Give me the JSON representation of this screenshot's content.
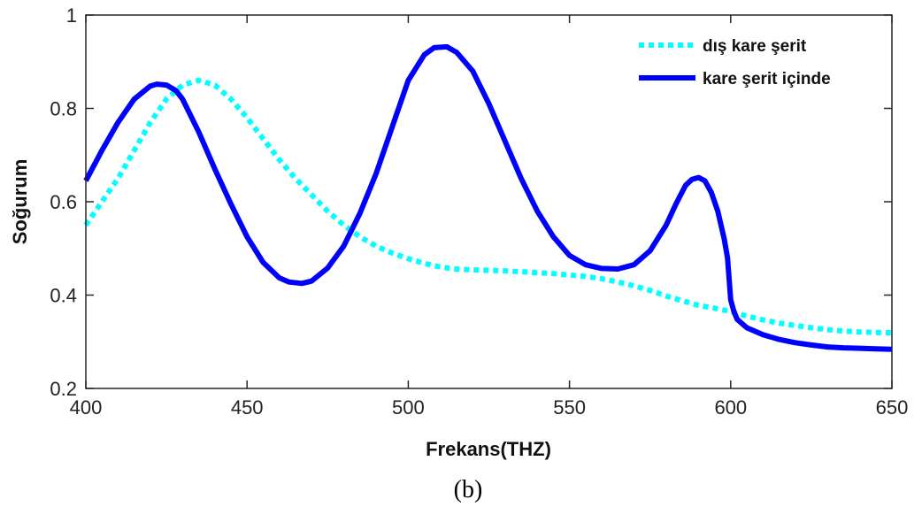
{
  "chart_data": {
    "type": "line",
    "xlabel": "Frekans(THZ)",
    "ylabel": "Soğurum",
    "xlim": [
      400,
      650
    ],
    "ylim": [
      0.2,
      1
    ],
    "x_ticks": [
      400,
      450,
      500,
      550,
      600,
      650
    ],
    "y_ticks": [
      0.2,
      0.4,
      0.6,
      0.8,
      1
    ],
    "x_tick_labels": [
      "400",
      "450",
      "500",
      "550",
      "600",
      "650"
    ],
    "y_tick_labels": [
      "0.2",
      "0.4",
      "0.6",
      "0.8",
      "1"
    ],
    "grid": false,
    "legend_position": "top-right",
    "caption": "(b)",
    "series": [
      {
        "name": "dış kare şerit",
        "color": "#00ffff",
        "style": "dotted",
        "x": [
          400,
          405,
          410,
          415,
          420,
          425,
          430,
          435,
          440,
          445,
          450,
          455,
          460,
          465,
          470,
          475,
          480,
          485,
          490,
          495,
          500,
          505,
          510,
          515,
          520,
          525,
          530,
          535,
          540,
          545,
          550,
          555,
          560,
          565,
          570,
          575,
          580,
          585,
          590,
          595,
          600,
          605,
          610,
          615,
          620,
          625,
          630,
          635,
          640,
          645,
          650
        ],
        "y": [
          0.55,
          0.6,
          0.65,
          0.71,
          0.77,
          0.82,
          0.85,
          0.86,
          0.85,
          0.82,
          0.78,
          0.735,
          0.69,
          0.65,
          0.615,
          0.58,
          0.55,
          0.525,
          0.505,
          0.49,
          0.478,
          0.468,
          0.46,
          0.456,
          0.454,
          0.453,
          0.452,
          0.45,
          0.448,
          0.446,
          0.443,
          0.44,
          0.435,
          0.428,
          0.42,
          0.41,
          0.398,
          0.388,
          0.378,
          0.372,
          0.365,
          0.355,
          0.347,
          0.34,
          0.335,
          0.33,
          0.326,
          0.323,
          0.321,
          0.32,
          0.319
        ]
      },
      {
        "name": "kare şerit içinde",
        "color": "#0000ff",
        "style": "solid",
        "x": [
          400,
          405,
          410,
          415,
          420,
          422,
          425,
          428,
          430,
          435,
          440,
          445,
          450,
          455,
          460,
          463,
          467,
          470,
          475,
          480,
          485,
          490,
          495,
          500,
          505,
          508,
          512,
          515,
          520,
          525,
          530,
          535,
          540,
          545,
          550,
          555,
          560,
          565,
          570,
          575,
          580,
          583,
          586,
          588,
          590,
          592,
          594,
          596,
          598,
          599,
          600,
          601,
          602,
          605,
          610,
          615,
          620,
          625,
          630,
          635,
          640,
          645,
          650
        ],
        "y": [
          0.645,
          0.71,
          0.77,
          0.82,
          0.848,
          0.852,
          0.85,
          0.838,
          0.82,
          0.75,
          0.67,
          0.595,
          0.525,
          0.47,
          0.437,
          0.428,
          0.425,
          0.43,
          0.458,
          0.505,
          0.575,
          0.66,
          0.76,
          0.86,
          0.915,
          0.93,
          0.932,
          0.92,
          0.88,
          0.81,
          0.73,
          0.65,
          0.58,
          0.525,
          0.485,
          0.465,
          0.457,
          0.456,
          0.465,
          0.495,
          0.55,
          0.595,
          0.635,
          0.648,
          0.652,
          0.645,
          0.62,
          0.58,
          0.52,
          0.48,
          0.39,
          0.365,
          0.348,
          0.33,
          0.315,
          0.305,
          0.298,
          0.293,
          0.289,
          0.287,
          0.286,
          0.285,
          0.284
        ]
      }
    ]
  }
}
